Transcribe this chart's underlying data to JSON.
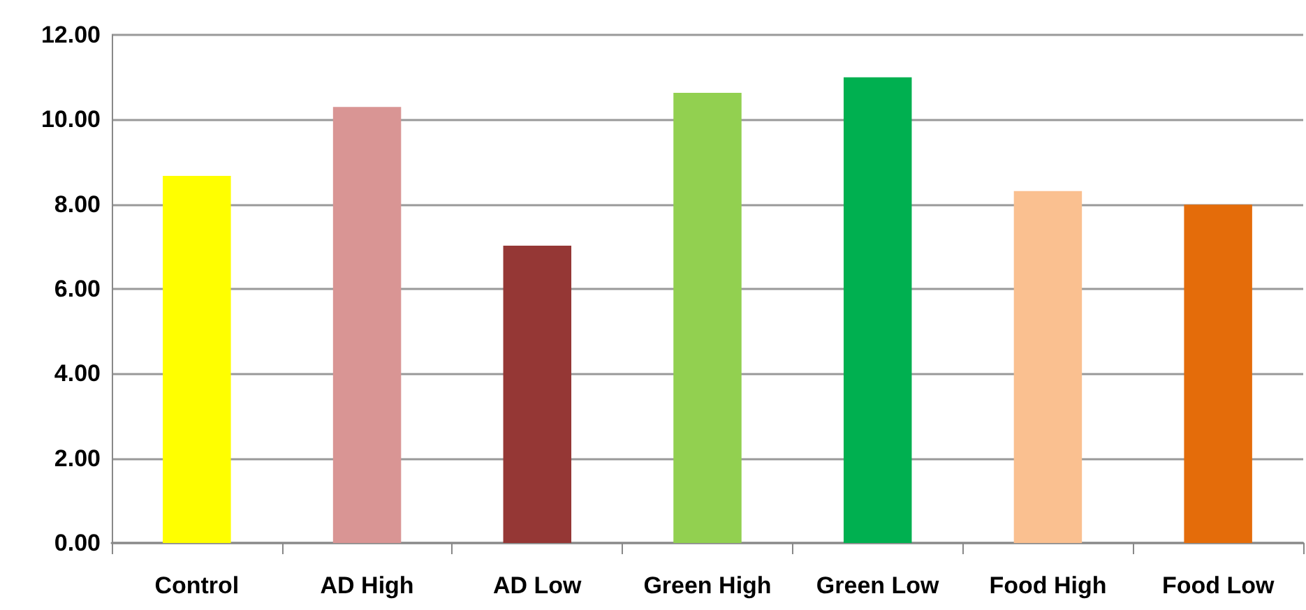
{
  "chart_data": {
    "type": "bar",
    "categories": [
      "Control",
      "AD High",
      "AD Low",
      "Green High",
      "Green Low",
      "Food High",
      "Food Low"
    ],
    "values": [
      8.67,
      10.3,
      7.02,
      10.63,
      11.0,
      8.31,
      7.99
    ],
    "colors": [
      "#ffff00",
      "#d99594",
      "#953735",
      "#92d050",
      "#00b050",
      "#fac090",
      "#e46c0a"
    ],
    "ylim": [
      0,
      12
    ],
    "yticks": [
      {
        "value": 0,
        "label": "0.00"
      },
      {
        "value": 2,
        "label": "2.00"
      },
      {
        "value": 4,
        "label": "4.00"
      },
      {
        "value": 6,
        "label": "6.00"
      },
      {
        "value": 8,
        "label": "8.00"
      },
      {
        "value": 10,
        "label": "10.00"
      },
      {
        "value": 12,
        "label": "12.00"
      }
    ],
    "grid": "y"
  }
}
